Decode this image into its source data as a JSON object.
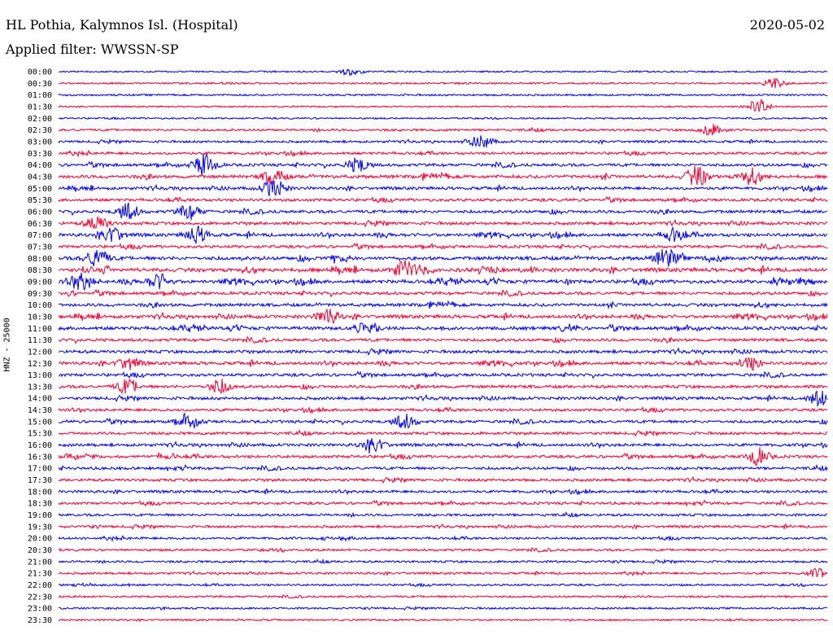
{
  "header": {
    "station": "HL Pothia, Kalymnos Isl. (Hospital)",
    "date": "2020-05-02",
    "filter": "Applied filter: WWSSN-SP"
  },
  "chart_data": {
    "type": "line",
    "title": "HL Pothia, Kalymnos Isl. (Hospital)",
    "ylabel": "HNZ - 25000",
    "xlabel": "",
    "row_labels": [
      "00:00",
      "00:30",
      "01:00",
      "01:30",
      "02:00",
      "02:30",
      "03:00",
      "03:30",
      "04:00",
      "04:30",
      "05:00",
      "05:30",
      "06:00",
      "06:30",
      "07:00",
      "07:30",
      "08:00",
      "08:30",
      "09:00",
      "09:30",
      "10:00",
      "10:30",
      "11:00",
      "11:30",
      "12:00",
      "12:30",
      "13:00",
      "13:30",
      "14:00",
      "14:30",
      "15:00",
      "15:30",
      "16:00",
      "16:30",
      "17:00",
      "17:30",
      "18:00",
      "18:30",
      "19:00",
      "19:30",
      "20:00",
      "20:30",
      "21:00",
      "21:30",
      "22:00",
      "22:30",
      "23:00",
      "23:30"
    ],
    "row_colors": [
      "#0000ff",
      "#ff0033"
    ],
    "activity": [
      0.1,
      0.15,
      0.18,
      0.1,
      0.12,
      0.35,
      0.35,
      0.45,
      0.55,
      0.7,
      0.55,
      0.55,
      0.6,
      0.6,
      0.65,
      0.55,
      0.8,
      0.85,
      0.75,
      0.6,
      0.65,
      0.7,
      0.7,
      0.6,
      0.6,
      0.65,
      0.55,
      0.6,
      0.55,
      0.5,
      0.55,
      0.5,
      0.55,
      0.55,
      0.5,
      0.5,
      0.45,
      0.45,
      0.4,
      0.4,
      0.35,
      0.35,
      0.3,
      0.3,
      0.25,
      0.25,
      0.22,
      0.2
    ],
    "events": [
      {
        "row": 0,
        "pos": 0.38,
        "amp": 0.4
      },
      {
        "row": 1,
        "pos": 0.93,
        "amp": 0.5
      },
      {
        "row": 3,
        "pos": 0.91,
        "amp": 0.8
      },
      {
        "row": 5,
        "pos": 0.85,
        "amp": 0.6
      },
      {
        "row": 6,
        "pos": 0.55,
        "amp": 0.7
      },
      {
        "row": 8,
        "pos": 0.19,
        "amp": 1.2
      },
      {
        "row": 8,
        "pos": 0.39,
        "amp": 0.8
      },
      {
        "row": 9,
        "pos": 0.28,
        "amp": 0.8
      },
      {
        "row": 9,
        "pos": 0.83,
        "amp": 1.1
      },
      {
        "row": 9,
        "pos": 0.9,
        "amp": 0.8
      },
      {
        "row": 10,
        "pos": 0.28,
        "amp": 1.0
      },
      {
        "row": 12,
        "pos": 0.09,
        "amp": 0.9
      },
      {
        "row": 12,
        "pos": 0.17,
        "amp": 0.8
      },
      {
        "row": 13,
        "pos": 0.05,
        "amp": 0.8
      },
      {
        "row": 14,
        "pos": 0.07,
        "amp": 0.9
      },
      {
        "row": 14,
        "pos": 0.18,
        "amp": 0.9
      },
      {
        "row": 14,
        "pos": 0.8,
        "amp": 0.7
      },
      {
        "row": 16,
        "pos": 0.05,
        "amp": 1.0
      },
      {
        "row": 16,
        "pos": 0.79,
        "amp": 1.0
      },
      {
        "row": 17,
        "pos": 0.45,
        "amp": 1.0
      },
      {
        "row": 18,
        "pos": 0.03,
        "amp": 0.9
      },
      {
        "row": 18,
        "pos": 0.13,
        "amp": 0.8
      },
      {
        "row": 21,
        "pos": 0.35,
        "amp": 0.8
      },
      {
        "row": 22,
        "pos": 0.4,
        "amp": 0.6
      },
      {
        "row": 25,
        "pos": 0.09,
        "amp": 0.7
      },
      {
        "row": 25,
        "pos": 0.9,
        "amp": 0.7
      },
      {
        "row": 27,
        "pos": 0.09,
        "amp": 0.8
      },
      {
        "row": 27,
        "pos": 0.21,
        "amp": 0.8
      },
      {
        "row": 28,
        "pos": 0.99,
        "amp": 0.9
      },
      {
        "row": 30,
        "pos": 0.17,
        "amp": 0.8
      },
      {
        "row": 30,
        "pos": 0.45,
        "amp": 0.8
      },
      {
        "row": 32,
        "pos": 0.41,
        "amp": 0.8
      },
      {
        "row": 33,
        "pos": 0.91,
        "amp": 0.9
      },
      {
        "row": 43,
        "pos": 0.99,
        "amp": 0.5
      }
    ]
  }
}
